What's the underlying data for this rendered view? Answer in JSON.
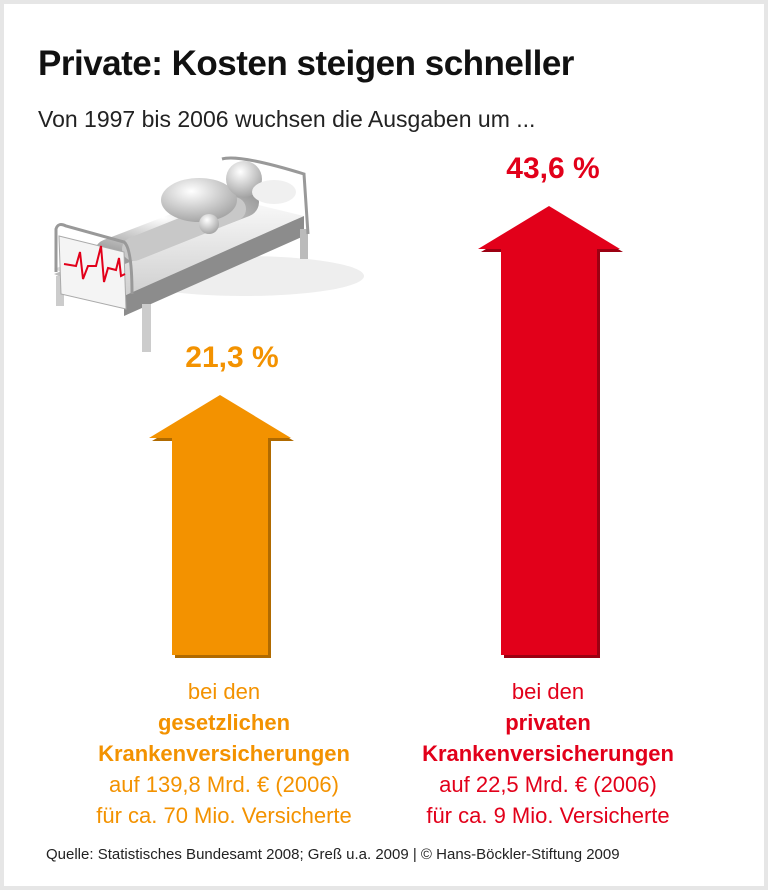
{
  "chart_data": {
    "type": "bar",
    "style": "arrows",
    "title": "Private: Kosten steigen schneller",
    "subtitle": "Von 1997 bis 2006 wuchsen die Ausgaben um ...",
    "categories": [
      "gesetzliche Krankenversicherungen",
      "private Krankenversicherungen"
    ],
    "values": [
      21.3,
      43.6
    ],
    "unit": "%",
    "data_labels": [
      "21,3 %",
      "43,6 %"
    ],
    "colors": [
      "#f39200",
      "#e2001a"
    ],
    "captions": [
      {
        "line1": "bei den",
        "bold1": "gesetzlichen",
        "bold2": "Krankenversicherungen",
        "line2": "auf 139,8 Mrd. € (2006)",
        "line3": "für ca. 70 Mio. Versicherte"
      },
      {
        "line1": "bei den",
        "bold1": "privaten",
        "bold2": "Krankenversicherungen",
        "line2": "auf 22,5 Mrd. € (2006)",
        "line3": "für ca. 9 Mio. Versicherte"
      }
    ],
    "source": "Quelle: Statistisches Bundesamt 2008; Greß u.a. 2009 | © Hans-Böckler-Stiftung 2009",
    "illustration": "hospital-bed-with-patient-and-ecg"
  }
}
